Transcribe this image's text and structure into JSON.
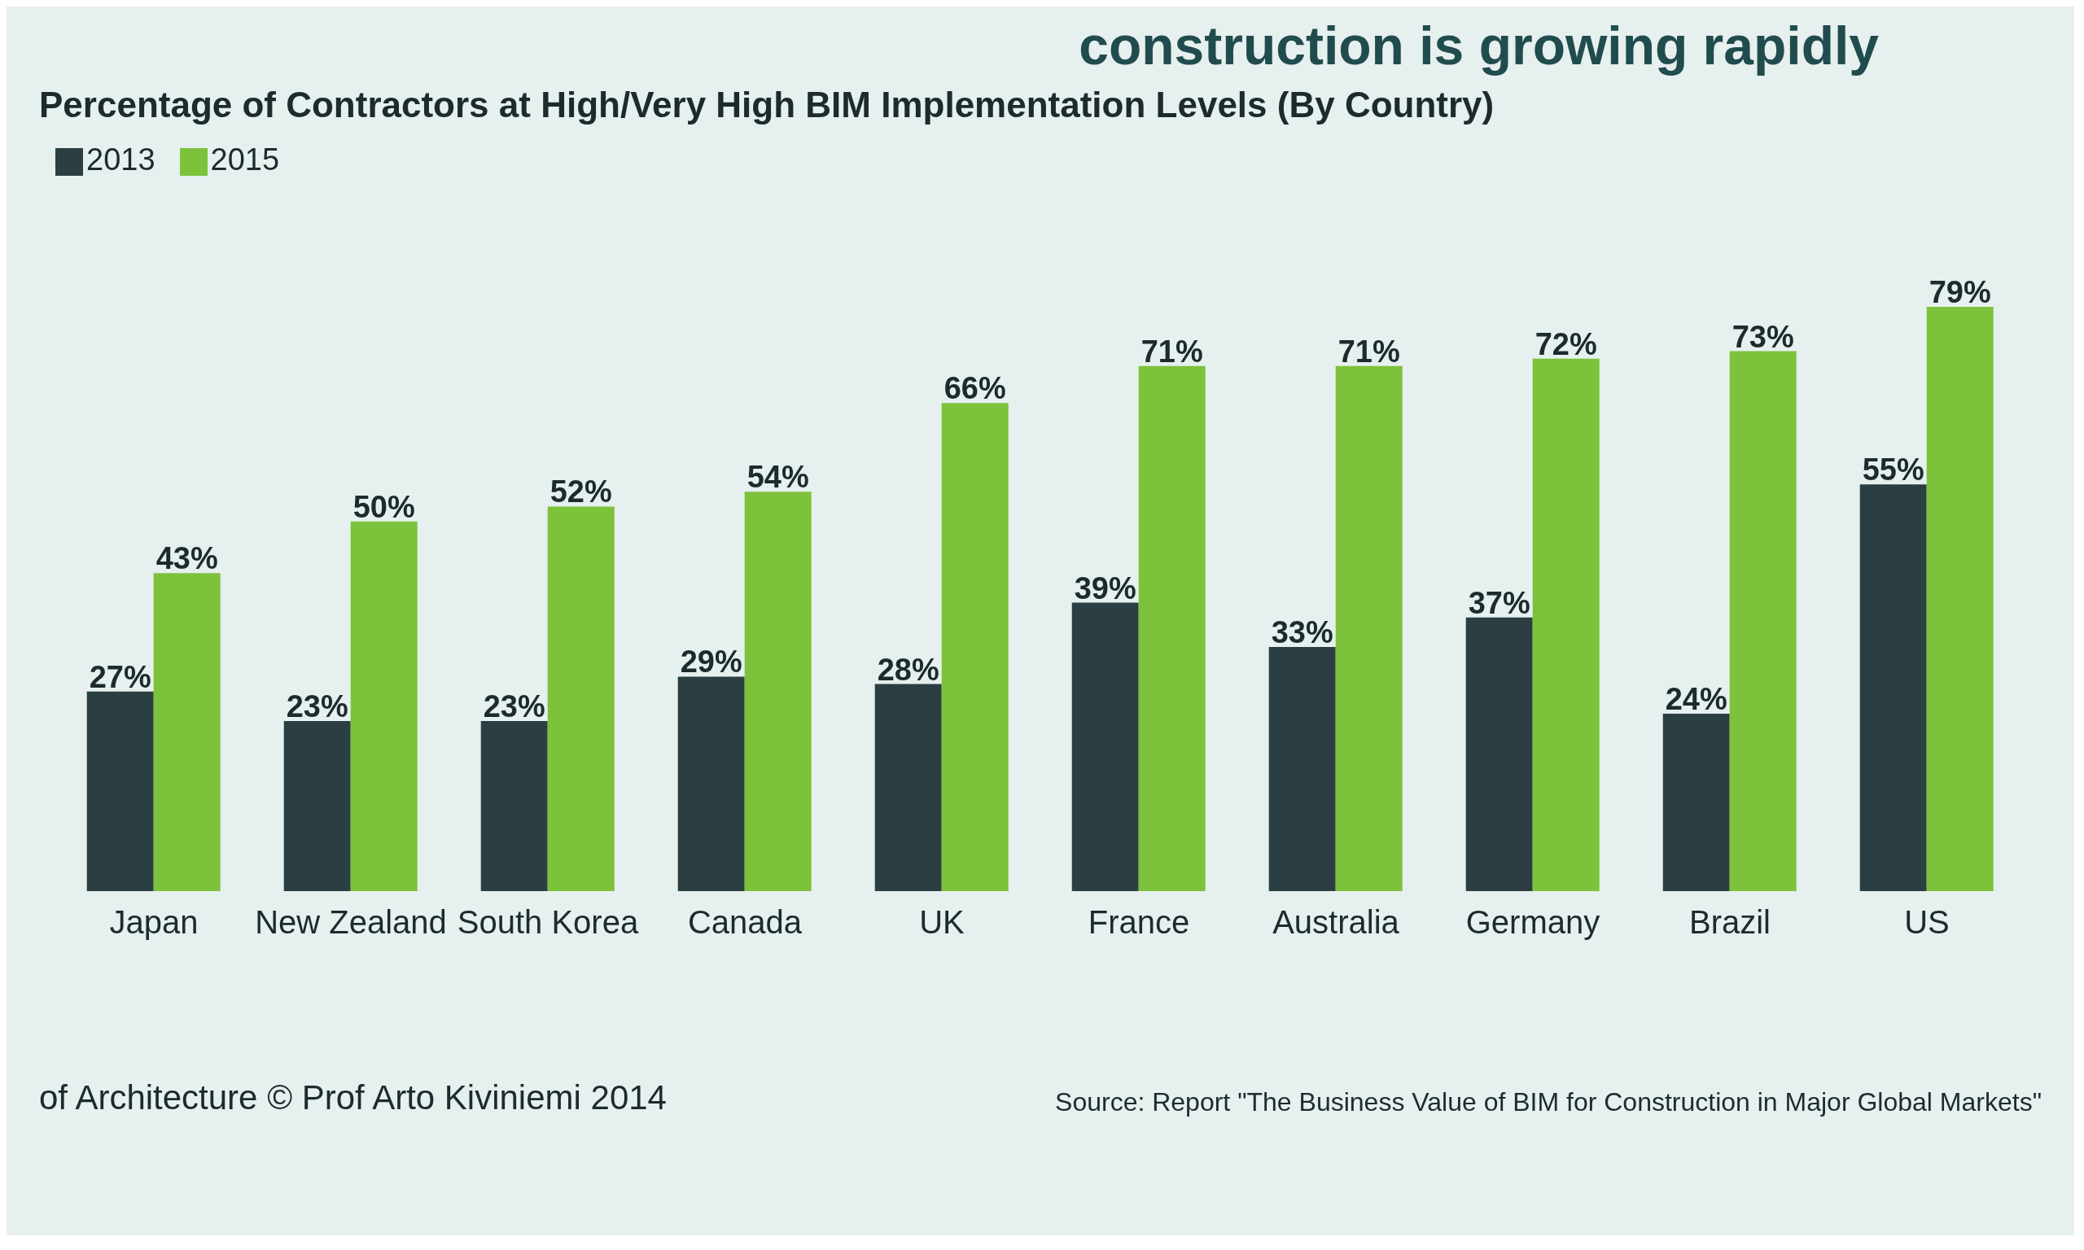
{
  "chart_data": {
    "type": "bar",
    "title": "construction is growing rapidly",
    "subtitle": "Percentage of Contractors at High/Very High BIM Implementation Levels (By Country)",
    "categories": [
      "Japan",
      "New Zealand",
      "South Korea",
      "Canada",
      "UK",
      "France",
      "Australia",
      "Germany",
      "Brazil",
      "US"
    ],
    "series": [
      {
        "name": "2013",
        "color": "#2b3f42",
        "values": [
          27,
          23,
          23,
          29,
          28,
          39,
          33,
          37,
          24,
          55
        ],
        "value_labels": [
          "27%",
          "23%",
          "23%",
          "29%",
          "28%",
          "39%",
          "33%",
          "37%",
          "24%",
          "55%"
        ]
      },
      {
        "name": "2015",
        "color": "#7dc23b",
        "values": [
          43,
          50,
          52,
          54,
          66,
          71,
          71,
          72,
          73,
          79
        ],
        "value_labels": [
          "43%",
          "50%",
          "52%",
          "54%",
          "66%",
          "71%",
          "71%",
          "72%",
          "73%",
          "79%"
        ]
      }
    ],
    "legend": "top left",
    "annotations": [
      "of Architecture © Prof Arto Kiviniemi 2014",
      "Source: Report \"The Business Value of BIM for Construction in Major Global Markets\""
    ]
  }
}
